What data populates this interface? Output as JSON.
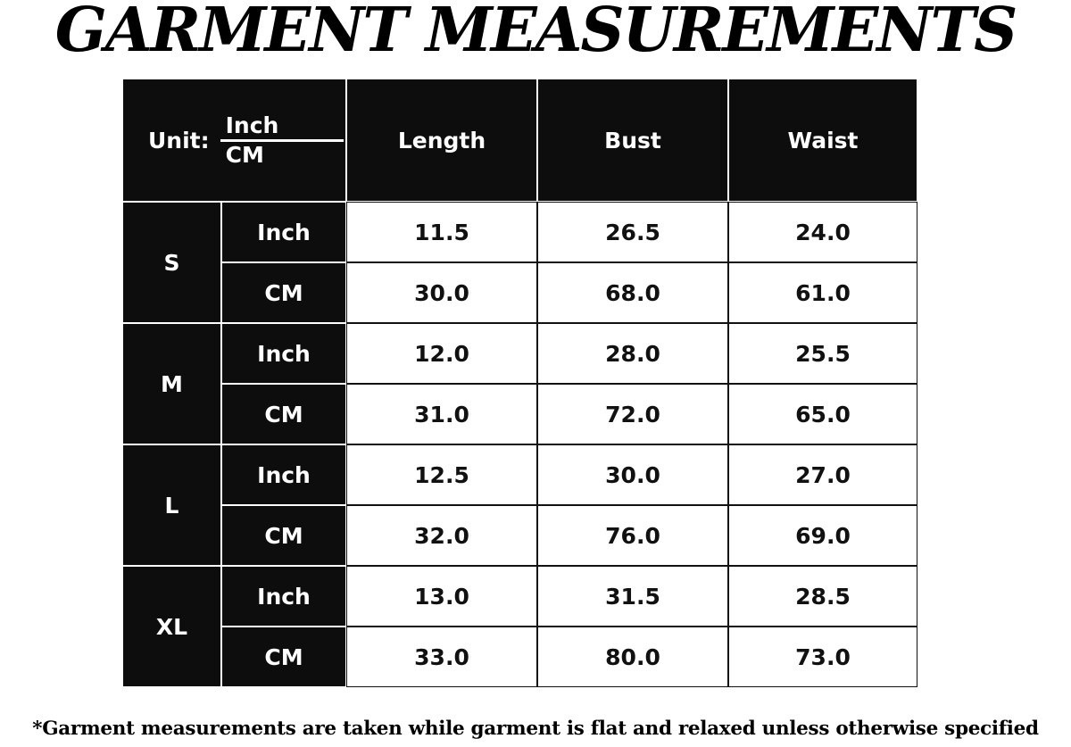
{
  "title": "GARMENT MEASUREMENTS",
  "header": {
    "unit_label": "Unit:",
    "unit_top": "Inch",
    "unit_bottom": "CM",
    "columns": [
      "Length",
      "Bust",
      "Waist"
    ]
  },
  "sizes": [
    {
      "size": "S",
      "rows": [
        {
          "unit": "Inch",
          "values": [
            "11.5",
            "26.5",
            "24.0"
          ]
        },
        {
          "unit": "CM",
          "values": [
            "30.0",
            "68.0",
            "61.0"
          ]
        }
      ]
    },
    {
      "size": "M",
      "rows": [
        {
          "unit": "Inch",
          "values": [
            "12.0",
            "28.0",
            "25.5"
          ]
        },
        {
          "unit": "CM",
          "values": [
            "31.0",
            "72.0",
            "65.0"
          ]
        }
      ]
    },
    {
      "size": "L",
      "rows": [
        {
          "unit": "Inch",
          "values": [
            "12.5",
            "30.0",
            "27.0"
          ]
        },
        {
          "unit": "CM",
          "values": [
            "32.0",
            "76.0",
            "69.0"
          ]
        }
      ]
    },
    {
      "size": "XL",
      "rows": [
        {
          "unit": "Inch",
          "values": [
            "13.0",
            "31.5",
            "28.5"
          ]
        },
        {
          "unit": "CM",
          "values": [
            "33.0",
            "80.0",
            "73.0"
          ]
        }
      ]
    }
  ],
  "footer": "*Garment measurements are taken while garment is flat and relaxed unless otherwise specified"
}
